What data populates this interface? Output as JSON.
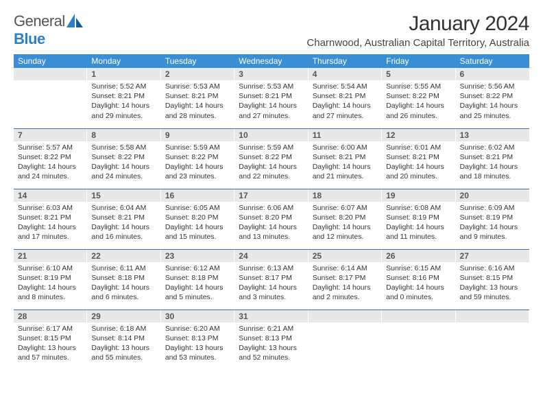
{
  "logo": {
    "general": "General",
    "blue": "Blue"
  },
  "title": "January 2024",
  "location": "Charnwood, Australian Capital Territory, Australia",
  "colors": {
    "header_bg": "#3a8fd4",
    "header_text": "#ffffff",
    "daynum_bg": "#e8e8e8",
    "row_border": "#3a6fa0",
    "logo_blue": "#2a7fc9"
  },
  "weekdays": [
    "Sunday",
    "Monday",
    "Tuesday",
    "Wednesday",
    "Thursday",
    "Friday",
    "Saturday"
  ],
  "weeks": [
    [
      null,
      {
        "n": "1",
        "sr": "5:52 AM",
        "ss": "8:21 PM",
        "dl": "14 hours and 29 minutes."
      },
      {
        "n": "2",
        "sr": "5:53 AM",
        "ss": "8:21 PM",
        "dl": "14 hours and 28 minutes."
      },
      {
        "n": "3",
        "sr": "5:53 AM",
        "ss": "8:21 PM",
        "dl": "14 hours and 27 minutes."
      },
      {
        "n": "4",
        "sr": "5:54 AM",
        "ss": "8:21 PM",
        "dl": "14 hours and 27 minutes."
      },
      {
        "n": "5",
        "sr": "5:55 AM",
        "ss": "8:22 PM",
        "dl": "14 hours and 26 minutes."
      },
      {
        "n": "6",
        "sr": "5:56 AM",
        "ss": "8:22 PM",
        "dl": "14 hours and 25 minutes."
      }
    ],
    [
      {
        "n": "7",
        "sr": "5:57 AM",
        "ss": "8:22 PM",
        "dl": "14 hours and 24 minutes."
      },
      {
        "n": "8",
        "sr": "5:58 AM",
        "ss": "8:22 PM",
        "dl": "14 hours and 24 minutes."
      },
      {
        "n": "9",
        "sr": "5:59 AM",
        "ss": "8:22 PM",
        "dl": "14 hours and 23 minutes."
      },
      {
        "n": "10",
        "sr": "5:59 AM",
        "ss": "8:22 PM",
        "dl": "14 hours and 22 minutes."
      },
      {
        "n": "11",
        "sr": "6:00 AM",
        "ss": "8:21 PM",
        "dl": "14 hours and 21 minutes."
      },
      {
        "n": "12",
        "sr": "6:01 AM",
        "ss": "8:21 PM",
        "dl": "14 hours and 20 minutes."
      },
      {
        "n": "13",
        "sr": "6:02 AM",
        "ss": "8:21 PM",
        "dl": "14 hours and 18 minutes."
      }
    ],
    [
      {
        "n": "14",
        "sr": "6:03 AM",
        "ss": "8:21 PM",
        "dl": "14 hours and 17 minutes."
      },
      {
        "n": "15",
        "sr": "6:04 AM",
        "ss": "8:21 PM",
        "dl": "14 hours and 16 minutes."
      },
      {
        "n": "16",
        "sr": "6:05 AM",
        "ss": "8:20 PM",
        "dl": "14 hours and 15 minutes."
      },
      {
        "n": "17",
        "sr": "6:06 AM",
        "ss": "8:20 PM",
        "dl": "14 hours and 13 minutes."
      },
      {
        "n": "18",
        "sr": "6:07 AM",
        "ss": "8:20 PM",
        "dl": "14 hours and 12 minutes."
      },
      {
        "n": "19",
        "sr": "6:08 AM",
        "ss": "8:19 PM",
        "dl": "14 hours and 11 minutes."
      },
      {
        "n": "20",
        "sr": "6:09 AM",
        "ss": "8:19 PM",
        "dl": "14 hours and 9 minutes."
      }
    ],
    [
      {
        "n": "21",
        "sr": "6:10 AM",
        "ss": "8:19 PM",
        "dl": "14 hours and 8 minutes."
      },
      {
        "n": "22",
        "sr": "6:11 AM",
        "ss": "8:18 PM",
        "dl": "14 hours and 6 minutes."
      },
      {
        "n": "23",
        "sr": "6:12 AM",
        "ss": "8:18 PM",
        "dl": "14 hours and 5 minutes."
      },
      {
        "n": "24",
        "sr": "6:13 AM",
        "ss": "8:17 PM",
        "dl": "14 hours and 3 minutes."
      },
      {
        "n": "25",
        "sr": "6:14 AM",
        "ss": "8:17 PM",
        "dl": "14 hours and 2 minutes."
      },
      {
        "n": "26",
        "sr": "6:15 AM",
        "ss": "8:16 PM",
        "dl": "14 hours and 0 minutes."
      },
      {
        "n": "27",
        "sr": "6:16 AM",
        "ss": "8:15 PM",
        "dl": "13 hours and 59 minutes."
      }
    ],
    [
      {
        "n": "28",
        "sr": "6:17 AM",
        "ss": "8:15 PM",
        "dl": "13 hours and 57 minutes."
      },
      {
        "n": "29",
        "sr": "6:18 AM",
        "ss": "8:14 PM",
        "dl": "13 hours and 55 minutes."
      },
      {
        "n": "30",
        "sr": "6:20 AM",
        "ss": "8:13 PM",
        "dl": "13 hours and 53 minutes."
      },
      {
        "n": "31",
        "sr": "6:21 AM",
        "ss": "8:13 PM",
        "dl": "13 hours and 52 minutes."
      },
      null,
      null,
      null
    ]
  ],
  "labels": {
    "sunrise": "Sunrise:",
    "sunset": "Sunset:",
    "daylight": "Daylight:"
  }
}
